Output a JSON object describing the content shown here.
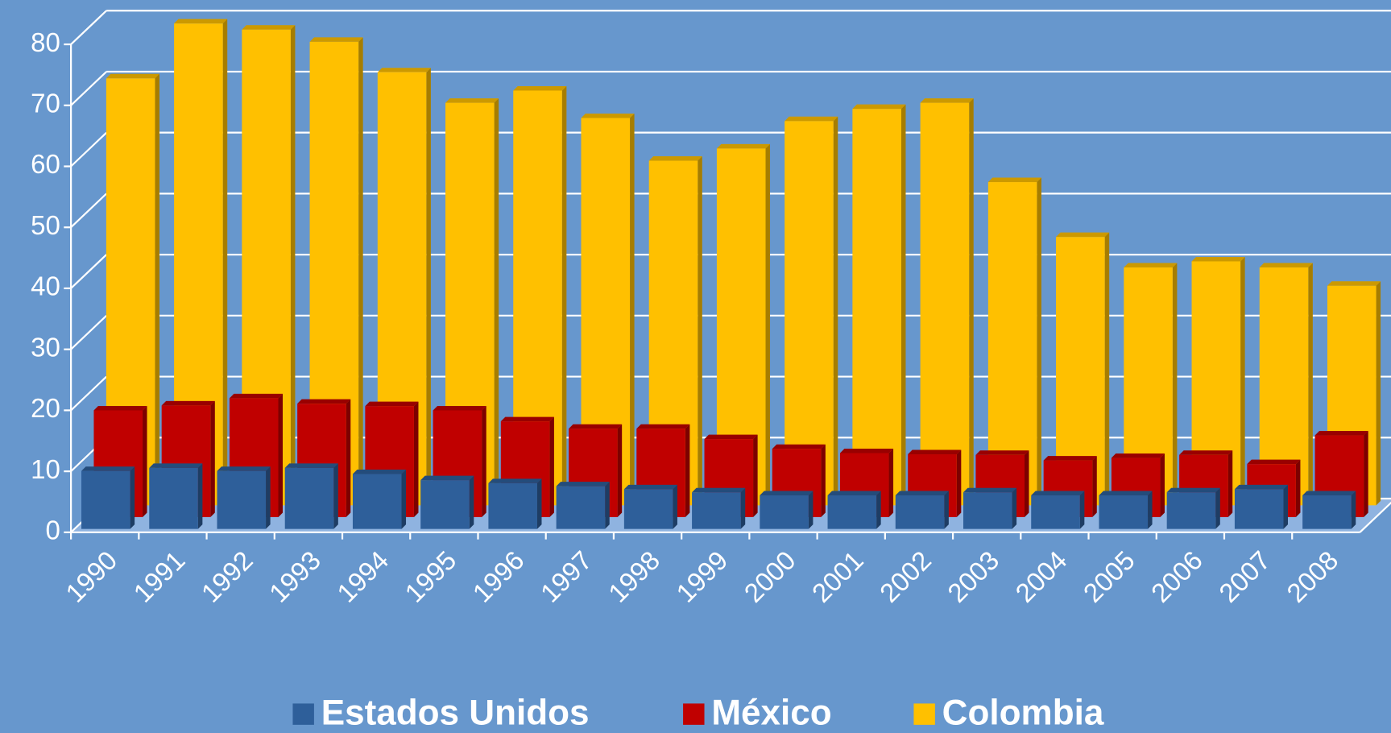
{
  "chart_data": {
    "type": "bar3d",
    "categories": [
      "1990",
      "1991",
      "1992",
      "1993",
      "1994",
      "1995",
      "1996",
      "1997",
      "1998",
      "1999",
      "2000",
      "2001",
      "2002",
      "2003",
      "2004",
      "2005",
      "2006",
      "2007",
      "2008"
    ],
    "series": [
      {
        "name": "Estados Unidos",
        "color": "#2e5f9a",
        "values": [
          9.5,
          10,
          9.5,
          10,
          9,
          8,
          7.5,
          7,
          6.5,
          6,
          5.5,
          5.5,
          5.5,
          6,
          5.5,
          5.5,
          6,
          6.5,
          5.5
        ]
      },
      {
        "name": "México",
        "color": "#c00000",
        "values": [
          17.5,
          18.3,
          19.5,
          18.6,
          18.2,
          17.5,
          15.7,
          14.5,
          14.5,
          12.8,
          11.2,
          10.5,
          10.3,
          10.2,
          9.3,
          9.7,
          10.2,
          8.7,
          13.4
        ]
      },
      {
        "name": "Colombia",
        "color": "#ffc000",
        "values": [
          70,
          79,
          78,
          76,
          71,
          66,
          68,
          63.5,
          56.5,
          58.5,
          63,
          65,
          66,
          53,
          44,
          39,
          40,
          39,
          36
        ]
      }
    ],
    "ylim": [
      0,
      80
    ],
    "yticks": [
      0,
      10,
      20,
      30,
      40,
      50,
      60,
      70,
      80
    ],
    "grid": true
  }
}
